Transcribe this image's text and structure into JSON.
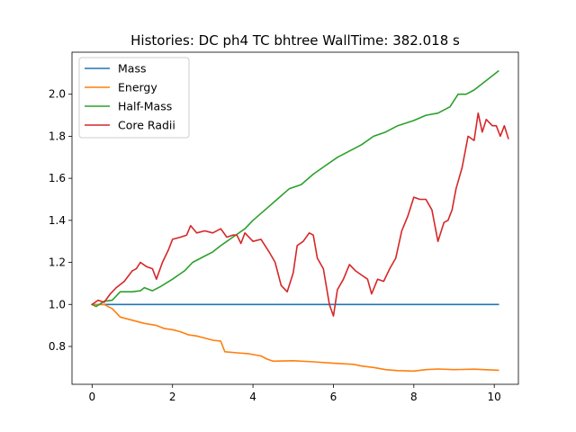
{
  "chart_data": {
    "type": "line",
    "title": "Histories: DC ph4 TC bhtree WallTime: 382.018 s",
    "xlabel": "",
    "ylabel": "",
    "xlim": [
      -0.5,
      10.6
    ],
    "ylim": [
      0.62,
      2.2
    ],
    "xticks": [
      {
        "value": 0,
        "label": "0"
      },
      {
        "value": 2,
        "label": "2"
      },
      {
        "value": 4,
        "label": "4"
      },
      {
        "value": 6,
        "label": "6"
      },
      {
        "value": 8,
        "label": "8"
      },
      {
        "value": 10,
        "label": "10"
      }
    ],
    "yticks": [
      {
        "value": 0.8,
        "label": "0.8"
      },
      {
        "value": 1.0,
        "label": "1.0"
      },
      {
        "value": 1.2,
        "label": "1.2"
      },
      {
        "value": 1.4,
        "label": "1.4"
      },
      {
        "value": 1.6,
        "label": "1.6"
      },
      {
        "value": 1.8,
        "label": "1.8"
      },
      {
        "value": 2.0,
        "label": "2.0"
      }
    ],
    "grid": false,
    "legend_position": "top-left",
    "series": [
      {
        "name": "Mass",
        "color": "#1f77b4",
        "points": [
          [
            0,
            1.0
          ],
          [
            10.1,
            1.0
          ]
        ]
      },
      {
        "name": "Energy",
        "color": "#ff7f0e",
        "points": [
          [
            0,
            1.0
          ],
          [
            0.3,
            1.0
          ],
          [
            0.5,
            0.98
          ],
          [
            0.7,
            0.94
          ],
          [
            1.0,
            0.925
          ],
          [
            1.3,
            0.91
          ],
          [
            1.6,
            0.9
          ],
          [
            1.8,
            0.885
          ],
          [
            2.0,
            0.88
          ],
          [
            2.2,
            0.87
          ],
          [
            2.4,
            0.855
          ],
          [
            2.6,
            0.85
          ],
          [
            2.8,
            0.84
          ],
          [
            3.0,
            0.83
          ],
          [
            3.2,
            0.825
          ],
          [
            3.3,
            0.775
          ],
          [
            3.6,
            0.77
          ],
          [
            3.9,
            0.765
          ],
          [
            4.2,
            0.755
          ],
          [
            4.35,
            0.74
          ],
          [
            4.5,
            0.73
          ],
          [
            5.0,
            0.732
          ],
          [
            5.5,
            0.727
          ],
          [
            6.0,
            0.72
          ],
          [
            6.5,
            0.715
          ],
          [
            6.7,
            0.707
          ],
          [
            7.0,
            0.7
          ],
          [
            7.3,
            0.69
          ],
          [
            7.6,
            0.685
          ],
          [
            8.0,
            0.683
          ],
          [
            8.3,
            0.69
          ],
          [
            8.6,
            0.693
          ],
          [
            9.0,
            0.69
          ],
          [
            9.5,
            0.692
          ],
          [
            10.1,
            0.687
          ]
        ]
      },
      {
        "name": "Half-Mass",
        "color": "#2ca02c",
        "points": [
          [
            0,
            1.0
          ],
          [
            0.1,
            0.99
          ],
          [
            0.3,
            1.015
          ],
          [
            0.5,
            1.02
          ],
          [
            0.7,
            1.06
          ],
          [
            1.0,
            1.06
          ],
          [
            1.2,
            1.065
          ],
          [
            1.3,
            1.08
          ],
          [
            1.5,
            1.065
          ],
          [
            1.7,
            1.085
          ],
          [
            2.0,
            1.12
          ],
          [
            2.3,
            1.16
          ],
          [
            2.5,
            1.2
          ],
          [
            2.8,
            1.23
          ],
          [
            3.0,
            1.25
          ],
          [
            3.2,
            1.28
          ],
          [
            3.5,
            1.32
          ],
          [
            3.8,
            1.36
          ],
          [
            4.0,
            1.4
          ],
          [
            4.3,
            1.45
          ],
          [
            4.6,
            1.5
          ],
          [
            4.9,
            1.55
          ],
          [
            5.2,
            1.57
          ],
          [
            5.5,
            1.62
          ],
          [
            5.8,
            1.66
          ],
          [
            6.1,
            1.7
          ],
          [
            6.4,
            1.73
          ],
          [
            6.7,
            1.76
          ],
          [
            7.0,
            1.8
          ],
          [
            7.3,
            1.82
          ],
          [
            7.6,
            1.85
          ],
          [
            8.0,
            1.875
          ],
          [
            8.3,
            1.9
          ],
          [
            8.6,
            1.91
          ],
          [
            8.9,
            1.94
          ],
          [
            9.1,
            2.0
          ],
          [
            9.3,
            2.0
          ],
          [
            9.5,
            2.02
          ],
          [
            9.7,
            2.05
          ],
          [
            10.1,
            2.11
          ]
        ]
      },
      {
        "name": "Core Radii",
        "color": "#d62728",
        "points": [
          [
            0,
            1.0
          ],
          [
            0.15,
            1.02
          ],
          [
            0.3,
            1.01
          ],
          [
            0.45,
            1.05
          ],
          [
            0.6,
            1.08
          ],
          [
            0.8,
            1.11
          ],
          [
            1.0,
            1.16
          ],
          [
            1.1,
            1.17
          ],
          [
            1.2,
            1.2
          ],
          [
            1.35,
            1.18
          ],
          [
            1.5,
            1.17
          ],
          [
            1.6,
            1.12
          ],
          [
            1.75,
            1.2
          ],
          [
            1.9,
            1.26
          ],
          [
            2.0,
            1.31
          ],
          [
            2.2,
            1.32
          ],
          [
            2.35,
            1.33
          ],
          [
            2.45,
            1.375
          ],
          [
            2.6,
            1.34
          ],
          [
            2.8,
            1.35
          ],
          [
            3.0,
            1.34
          ],
          [
            3.2,
            1.36
          ],
          [
            3.35,
            1.32
          ],
          [
            3.5,
            1.33
          ],
          [
            3.6,
            1.33
          ],
          [
            3.7,
            1.29
          ],
          [
            3.8,
            1.34
          ],
          [
            4.0,
            1.3
          ],
          [
            4.2,
            1.31
          ],
          [
            4.3,
            1.28
          ],
          [
            4.4,
            1.25
          ],
          [
            4.55,
            1.2
          ],
          [
            4.7,
            1.09
          ],
          [
            4.85,
            1.06
          ],
          [
            5.0,
            1.15
          ],
          [
            5.1,
            1.28
          ],
          [
            5.25,
            1.3
          ],
          [
            5.4,
            1.34
          ],
          [
            5.5,
            1.33
          ],
          [
            5.6,
            1.22
          ],
          [
            5.75,
            1.17
          ],
          [
            5.9,
            1.0
          ],
          [
            6.0,
            0.945
          ],
          [
            6.1,
            1.07
          ],
          [
            6.25,
            1.12
          ],
          [
            6.4,
            1.19
          ],
          [
            6.55,
            1.16
          ],
          [
            6.7,
            1.14
          ],
          [
            6.85,
            1.12
          ],
          [
            6.95,
            1.05
          ],
          [
            7.1,
            1.12
          ],
          [
            7.25,
            1.11
          ],
          [
            7.4,
            1.17
          ],
          [
            7.55,
            1.22
          ],
          [
            7.7,
            1.35
          ],
          [
            7.85,
            1.42
          ],
          [
            8.0,
            1.51
          ],
          [
            8.15,
            1.5
          ],
          [
            8.3,
            1.5
          ],
          [
            8.45,
            1.45
          ],
          [
            8.6,
            1.3
          ],
          [
            8.75,
            1.39
          ],
          [
            8.85,
            1.4
          ],
          [
            8.95,
            1.45
          ],
          [
            9.05,
            1.55
          ],
          [
            9.2,
            1.65
          ],
          [
            9.35,
            1.8
          ],
          [
            9.5,
            1.78
          ],
          [
            9.6,
            1.91
          ],
          [
            9.7,
            1.82
          ],
          [
            9.8,
            1.88
          ],
          [
            9.95,
            1.85
          ],
          [
            10.05,
            1.85
          ],
          [
            10.15,
            1.8
          ],
          [
            10.25,
            1.85
          ],
          [
            10.35,
            1.79
          ]
        ]
      }
    ]
  }
}
